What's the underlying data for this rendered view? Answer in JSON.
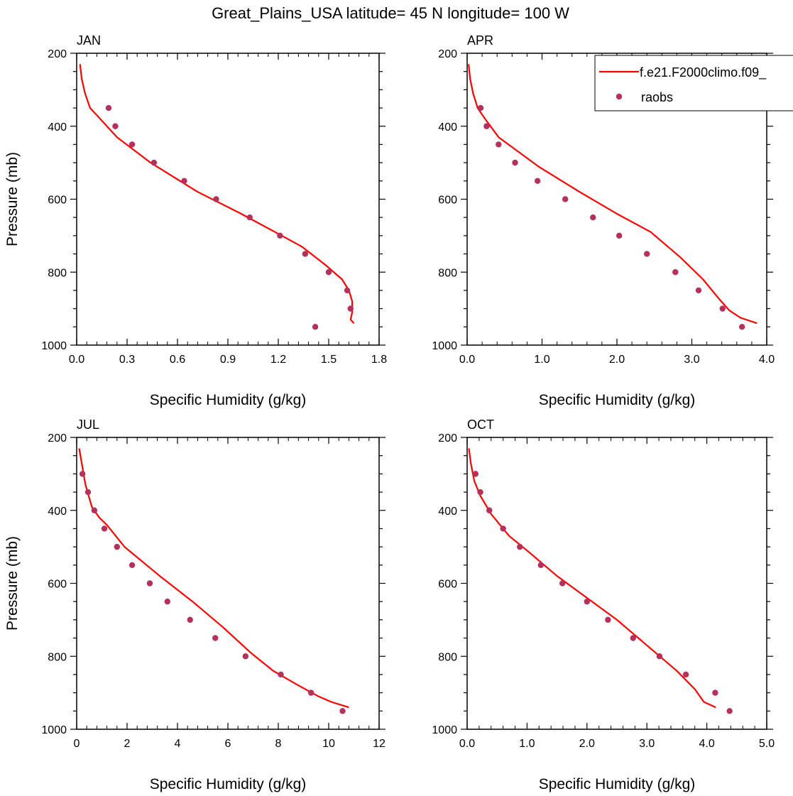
{
  "figure": {
    "title": "Great_Plains_USA  latitude= 45 N longitude= 100 W"
  },
  "colors": {
    "model_line": "#ff0000",
    "obs_marker": "#b5305a",
    "axis": "#000000"
  },
  "legend": {
    "placement": "top-right of APR panel",
    "entries": [
      {
        "label": "f.e21.F2000climo.f09_",
        "kind": "line",
        "color": "#ff0000"
      },
      {
        "label": "raobs",
        "kind": "marker",
        "color": "#b5305a"
      }
    ]
  },
  "chart_data": [
    {
      "type": "line",
      "panel_label": "JAN",
      "xlabel": "Specific Humidity (g/kg)",
      "ylabel": "Pressure (mb)",
      "xlim": [
        0,
        1.8
      ],
      "ylim": [
        1000,
        200
      ],
      "y_reversed": true,
      "xticks": [
        "0.0",
        "0.3",
        "0.6",
        "0.9",
        "1.2",
        "1.5",
        "1.8"
      ],
      "xtick_values": [
        0,
        0.3,
        0.6,
        0.9,
        1.2,
        1.5,
        1.8
      ],
      "yticks": [
        "200",
        "400",
        "600",
        "800",
        "1000"
      ],
      "ytick_values": [
        200,
        400,
        600,
        800,
        1000
      ],
      "series": [
        {
          "kind": "line",
          "x": [
            0.02,
            0.03,
            0.05,
            0.08,
            0.12,
            0.24,
            0.44,
            0.72,
            0.98,
            1.18,
            1.34,
            1.48,
            1.58,
            1.62,
            1.64,
            1.64,
            1.63,
            1.65
          ],
          "y": [
            230,
            270,
            310,
            350,
            370,
            430,
            500,
            580,
            640,
            690,
            730,
            780,
            820,
            850,
            880,
            910,
            930,
            940
          ]
        },
        {
          "kind": "scatter",
          "x": [
            0.19,
            0.23,
            0.33,
            0.46,
            0.64,
            0.83,
            1.03,
            1.21,
            1.36,
            1.5,
            1.61,
            1.63,
            1.42
          ],
          "y": [
            350,
            400,
            450,
            500,
            550,
            600,
            650,
            700,
            750,
            800,
            850,
            900,
            950
          ]
        }
      ]
    },
    {
      "type": "line",
      "panel_label": "APR",
      "xlabel": "Specific Humidity (g/kg)",
      "ylabel": "",
      "xlim": [
        0,
        4.0
      ],
      "ylim": [
        1000,
        200
      ],
      "y_reversed": true,
      "xticks": [
        "0.0",
        "1.0",
        "2.0",
        "3.0",
        "4.0"
      ],
      "xtick_values": [
        0,
        1,
        2,
        3,
        4
      ],
      "yticks": [
        "200",
        "400",
        "600",
        "800",
        "1000"
      ],
      "ytick_values": [
        200,
        400,
        600,
        800,
        1000
      ],
      "series": [
        {
          "kind": "line",
          "x": [
            0.02,
            0.04,
            0.08,
            0.14,
            0.24,
            0.42,
            0.95,
            1.5,
            2.0,
            2.45,
            2.85,
            3.15,
            3.35,
            3.5,
            3.65,
            3.87
          ],
          "y": [
            230,
            270,
            310,
            350,
            380,
            430,
            510,
            580,
            640,
            690,
            760,
            820,
            870,
            905,
            925,
            940
          ]
        },
        {
          "kind": "scatter",
          "x": [
            0.18,
            0.26,
            0.42,
            0.64,
            0.94,
            1.31,
            1.68,
            2.03,
            2.4,
            2.78,
            3.09,
            3.41,
            3.67
          ],
          "y": [
            350,
            400,
            450,
            500,
            550,
            600,
            650,
            700,
            750,
            800,
            850,
            900,
            950
          ]
        }
      ]
    },
    {
      "type": "line",
      "panel_label": "JUL",
      "xlabel": "Specific Humidity (g/kg)",
      "ylabel": "Pressure (mb)",
      "xlim": [
        0,
        12
      ],
      "ylim": [
        1000,
        200
      ],
      "y_reversed": true,
      "xticks": [
        "0",
        "2",
        "4",
        "6",
        "8",
        "10",
        "12"
      ],
      "xtick_values": [
        0,
        2,
        4,
        6,
        8,
        10,
        12
      ],
      "yticks": [
        "200",
        "400",
        "600",
        "800",
        "1000"
      ],
      "ytick_values": [
        200,
        400,
        600,
        800,
        1000
      ],
      "series": [
        {
          "kind": "line",
          "x": [
            0.1,
            0.2,
            0.35,
            0.6,
            0.9,
            1.2,
            1.9,
            3.3,
            4.6,
            5.8,
            6.9,
            7.8,
            8.8,
            9.6,
            10.1,
            10.8
          ],
          "y": [
            230,
            270,
            330,
            390,
            420,
            440,
            500,
            580,
            650,
            720,
            790,
            840,
            880,
            910,
            925,
            940
          ]
        },
        {
          "kind": "scatter",
          "x": [
            0.23,
            0.45,
            0.7,
            1.1,
            1.6,
            2.2,
            2.9,
            3.6,
            4.5,
            5.5,
            6.7,
            8.1,
            9.3,
            10.55
          ],
          "y": [
            300,
            350,
            400,
            450,
            500,
            550,
            600,
            650,
            700,
            750,
            800,
            850,
            900,
            950
          ]
        }
      ]
    },
    {
      "type": "line",
      "panel_label": "OCT",
      "xlabel": "Specific Humidity (g/kg)",
      "ylabel": "",
      "xlim": [
        0,
        5.0
      ],
      "ylim": [
        1000,
        200
      ],
      "y_reversed": true,
      "xticks": [
        "0.0",
        "1.0",
        "2.0",
        "3.0",
        "4.0",
        "5.0"
      ],
      "xtick_values": [
        0,
        1,
        2,
        3,
        4,
        5
      ],
      "yticks": [
        "200",
        "400",
        "600",
        "800",
        "1000"
      ],
      "ytick_values": [
        200,
        400,
        600,
        800,
        1000
      ],
      "series": [
        {
          "kind": "line",
          "x": [
            0.03,
            0.06,
            0.12,
            0.22,
            0.4,
            0.7,
            1.0,
            1.5,
            2.0,
            2.5,
            3.0,
            3.5,
            3.8,
            3.95,
            4.15
          ],
          "y": [
            230,
            270,
            320,
            360,
            410,
            470,
            510,
            580,
            640,
            700,
            770,
            840,
            890,
            925,
            940
          ]
        },
        {
          "kind": "scatter",
          "x": [
            0.14,
            0.22,
            0.37,
            0.6,
            0.88,
            1.23,
            1.59,
            2.0,
            2.35,
            2.77,
            3.21,
            3.65,
            4.14,
            4.38
          ],
          "y": [
            300,
            350,
            400,
            450,
            500,
            550,
            600,
            650,
            700,
            750,
            800,
            850,
            900,
            950
          ]
        }
      ]
    }
  ]
}
